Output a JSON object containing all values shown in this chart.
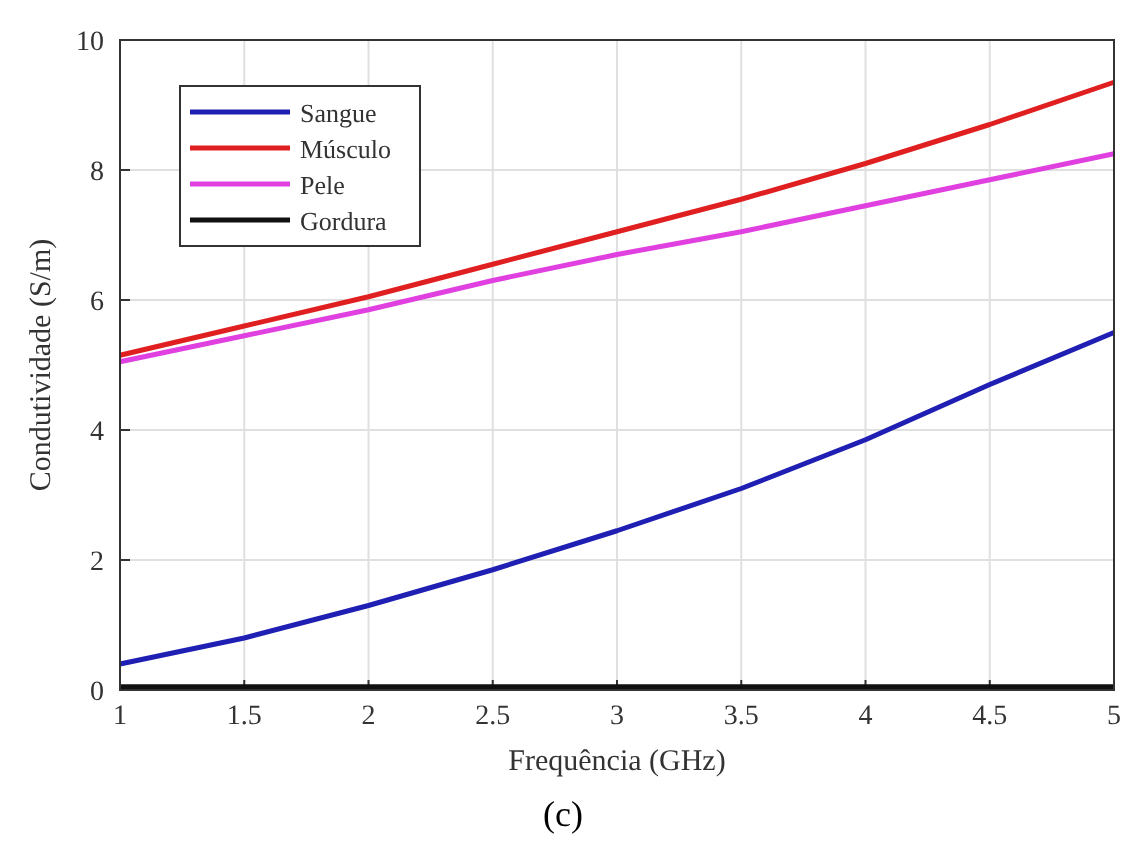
{
  "chart_data": {
    "type": "line",
    "xlabel": "Frequência (GHz)",
    "ylabel": "Condutividade (S/m)",
    "annotations": [
      "(c)"
    ],
    "x": [
      1,
      1.5,
      2,
      2.5,
      3,
      3.5,
      4,
      4.5,
      5
    ],
    "series": [
      {
        "name": "Sangue",
        "color": "#1f1fb4",
        "values": [
          0.4,
          0.8,
          1.3,
          1.85,
          2.45,
          3.1,
          3.85,
          4.7,
          5.5
        ]
      },
      {
        "name": "Músculo",
        "color": "#e02020",
        "values": [
          5.15,
          5.6,
          6.05,
          6.55,
          7.05,
          7.55,
          8.1,
          8.7,
          9.35
        ]
      },
      {
        "name": "Pele",
        "color": "#e040e0",
        "values": [
          5.05,
          5.45,
          5.85,
          6.3,
          6.7,
          7.05,
          7.45,
          7.85,
          8.25
        ]
      },
      {
        "name": "Gordura",
        "color": "#111111",
        "values": [
          0.05,
          0.05,
          0.05,
          0.05,
          0.05,
          0.05,
          0.05,
          0.05,
          0.05
        ]
      }
    ],
    "xlim": [
      1,
      5
    ],
    "xticks": [
      1,
      1.5,
      2,
      2.5,
      3,
      3.5,
      4,
      4.5,
      5
    ],
    "ylim": [
      0,
      10
    ],
    "yticks": [
      0,
      2,
      4,
      6,
      8,
      10
    ],
    "grid": true,
    "legend": "top left",
    "marker": "none",
    "line_style": "solid"
  }
}
